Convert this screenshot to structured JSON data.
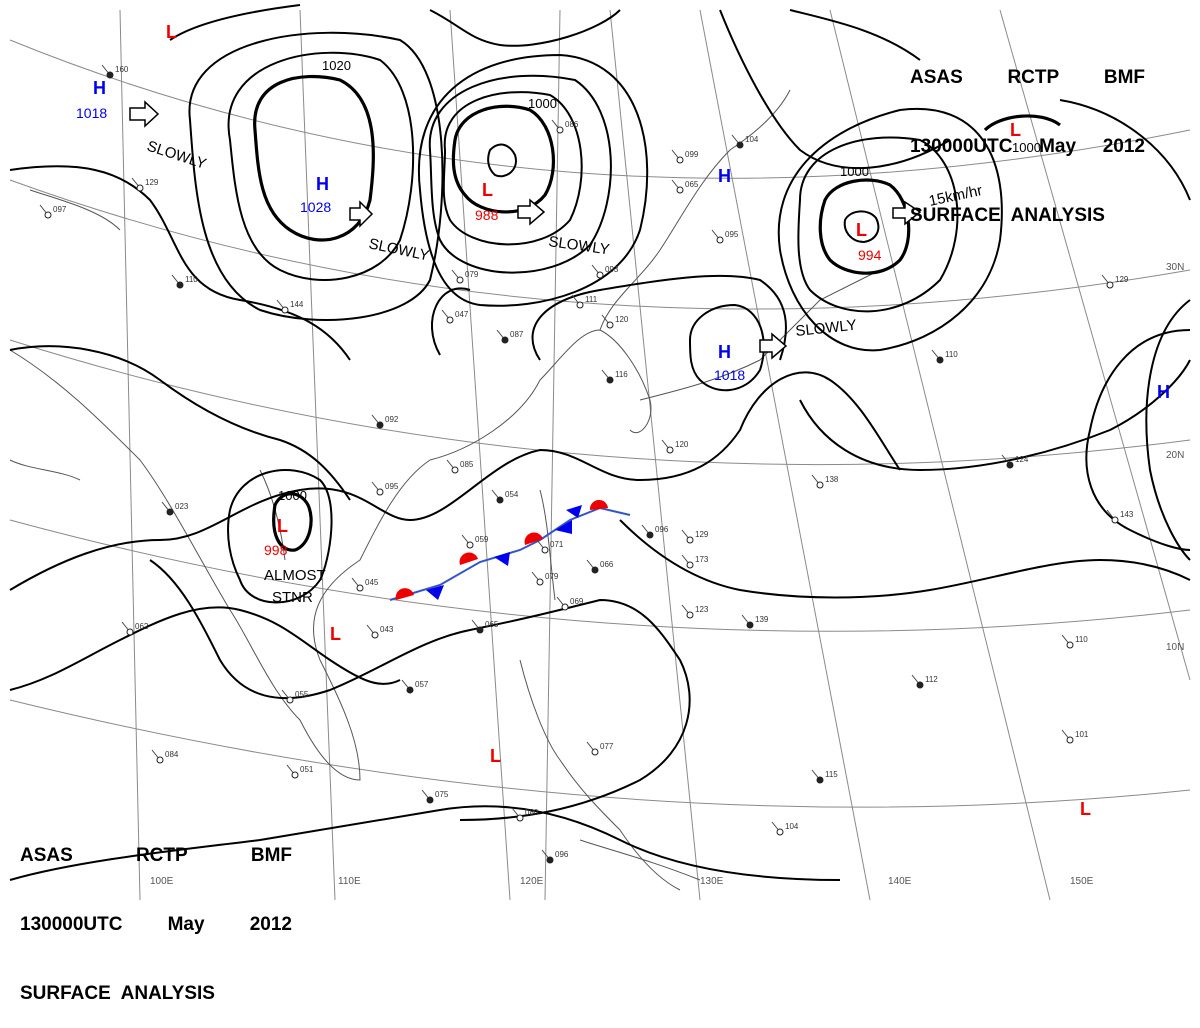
{
  "header_top": {
    "line1": [
      "ASAS",
      "RCTP",
      "BMF"
    ],
    "line2": [
      "130000UTC",
      "May",
      "2012"
    ],
    "line3": "SURFACE  ANALYSIS"
  },
  "header_bottom": {
    "line1": [
      "ASAS",
      "RCTP",
      "BMF"
    ],
    "line2": [
      "130000UTC",
      "May",
      "2012"
    ],
    "line3": "SURFACE  ANALYSIS"
  },
  "colors": {
    "high": "#0000ee",
    "low": "#ee0000",
    "front_cold": "#0000ee",
    "front_warm": "#ee0000"
  },
  "longitude_labels": [
    "100E",
    "110E",
    "120E",
    "130E",
    "140E",
    "150E"
  ],
  "latitude_labels": [
    "30N",
    "20N",
    "10N"
  ],
  "isobar_labels": [
    {
      "text": "1020"
    },
    {
      "text": "1000"
    },
    {
      "text": "1000"
    },
    {
      "text": "1000"
    },
    {
      "text": "1000"
    }
  ],
  "pressure_centers": [
    {
      "type": "H",
      "value": "1018"
    },
    {
      "type": "H",
      "value": "1028"
    },
    {
      "type": "L",
      "value": "988"
    },
    {
      "type": "H",
      "value": ""
    },
    {
      "type": "L",
      "value": "994"
    },
    {
      "type": "L",
      "value": ""
    },
    {
      "type": "H",
      "value": "1018"
    },
    {
      "type": "L",
      "value": "998"
    },
    {
      "type": "L",
      "value": ""
    },
    {
      "type": "L",
      "value": ""
    },
    {
      "type": "L",
      "value": ""
    },
    {
      "type": "H",
      "value": ""
    },
    {
      "type": "L",
      "value": ""
    }
  ],
  "movement_labels": [
    {
      "text": "SLOWLY"
    },
    {
      "text": "SLOWLY"
    },
    {
      "text": "SLOWLY"
    },
    {
      "text": "SLOWLY"
    },
    {
      "text": "15km/hr"
    },
    {
      "text": "ALMOST"
    },
    {
      "text": "STNR"
    }
  ],
  "station_icons": "station-model-icon",
  "station_labels": [
    "160",
    "129",
    "097",
    "110",
    "144",
    "047",
    "092",
    "085",
    "095",
    "054",
    "059",
    "071",
    "066",
    "079",
    "069",
    "065",
    "043",
    "045",
    "023",
    "062",
    "055",
    "057",
    "051",
    "084",
    "075",
    "080",
    "077",
    "096",
    "079",
    "093",
    "087",
    "111",
    "120",
    "116",
    "099",
    "065",
    "104",
    "095",
    "086",
    "110",
    "120",
    "138",
    "124",
    "143",
    "129",
    "112",
    "110",
    "101",
    "115",
    "104",
    "123",
    "139",
    "173",
    "129",
    "096"
  ]
}
